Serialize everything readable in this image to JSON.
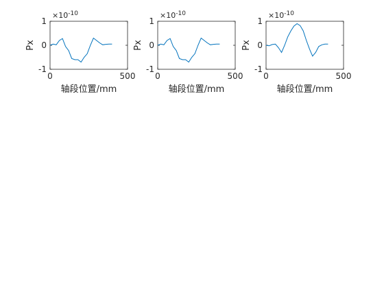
{
  "chart_data": [
    {
      "type": "line",
      "xlabel": "轴段位置/mm",
      "ylabel": "Px",
      "exponent_base": "×10",
      "exponent_power": "-10",
      "xlim": [
        0,
        500
      ],
      "ylim": [
        -1,
        1
      ],
      "xticks": [
        "0",
        "500"
      ],
      "yticks": [
        "-1",
        "0",
        "1"
      ],
      "line_color": "#0072bd",
      "series": [
        {
          "x": [
            0,
            20,
            40,
            60,
            80,
            100,
            120,
            140,
            160,
            180,
            200,
            220,
            240,
            260,
            280,
            300,
            320,
            340,
            360,
            380,
            400
          ],
          "y": [
            0.0,
            0.05,
            0.02,
            0.2,
            0.28,
            -0.05,
            -0.22,
            -0.55,
            -0.6,
            -0.6,
            -0.7,
            -0.5,
            -0.35,
            0.0,
            0.3,
            0.2,
            0.1,
            0.02,
            0.04,
            0.05,
            0.05
          ]
        }
      ]
    },
    {
      "type": "line",
      "xlabel": "轴段位置/mm",
      "ylabel": "Px",
      "exponent_base": "×10",
      "exponent_power": "-10",
      "xlim": [
        0,
        500
      ],
      "ylim": [
        -1,
        1
      ],
      "xticks": [
        "0",
        "500"
      ],
      "yticks": [
        "-1",
        "0",
        "1"
      ],
      "line_color": "#0072bd",
      "series": [
        {
          "x": [
            0,
            20,
            40,
            60,
            80,
            100,
            120,
            140,
            160,
            180,
            200,
            220,
            240,
            260,
            280,
            300,
            320,
            340,
            360,
            380,
            400
          ],
          "y": [
            0.0,
            0.05,
            0.02,
            0.2,
            0.28,
            -0.05,
            -0.22,
            -0.55,
            -0.6,
            -0.6,
            -0.7,
            -0.5,
            -0.35,
            0.0,
            0.3,
            0.2,
            0.1,
            0.02,
            0.04,
            0.05,
            0.05
          ]
        }
      ]
    },
    {
      "type": "line",
      "xlabel": "轴段位置/mm",
      "ylabel": "Px",
      "exponent_base": "×10",
      "exponent_power": "-10",
      "xlim": [
        0,
        500
      ],
      "ylim": [
        -1,
        1
      ],
      "xticks": [
        "0",
        "500"
      ],
      "yticks": [
        "-1",
        "0",
        "1"
      ],
      "line_color": "#0072bd",
      "series": [
        {
          "x": [
            0,
            20,
            40,
            60,
            80,
            100,
            120,
            140,
            160,
            180,
            200,
            220,
            240,
            260,
            280,
            300,
            320,
            340,
            360,
            380,
            400
          ],
          "y": [
            0.0,
            -0.02,
            0.03,
            0.05,
            -0.1,
            -0.3,
            0.0,
            0.35,
            0.6,
            0.8,
            0.9,
            0.82,
            0.6,
            0.2,
            -0.15,
            -0.45,
            -0.3,
            -0.05,
            0.02,
            0.05,
            0.05
          ]
        }
      ]
    }
  ]
}
